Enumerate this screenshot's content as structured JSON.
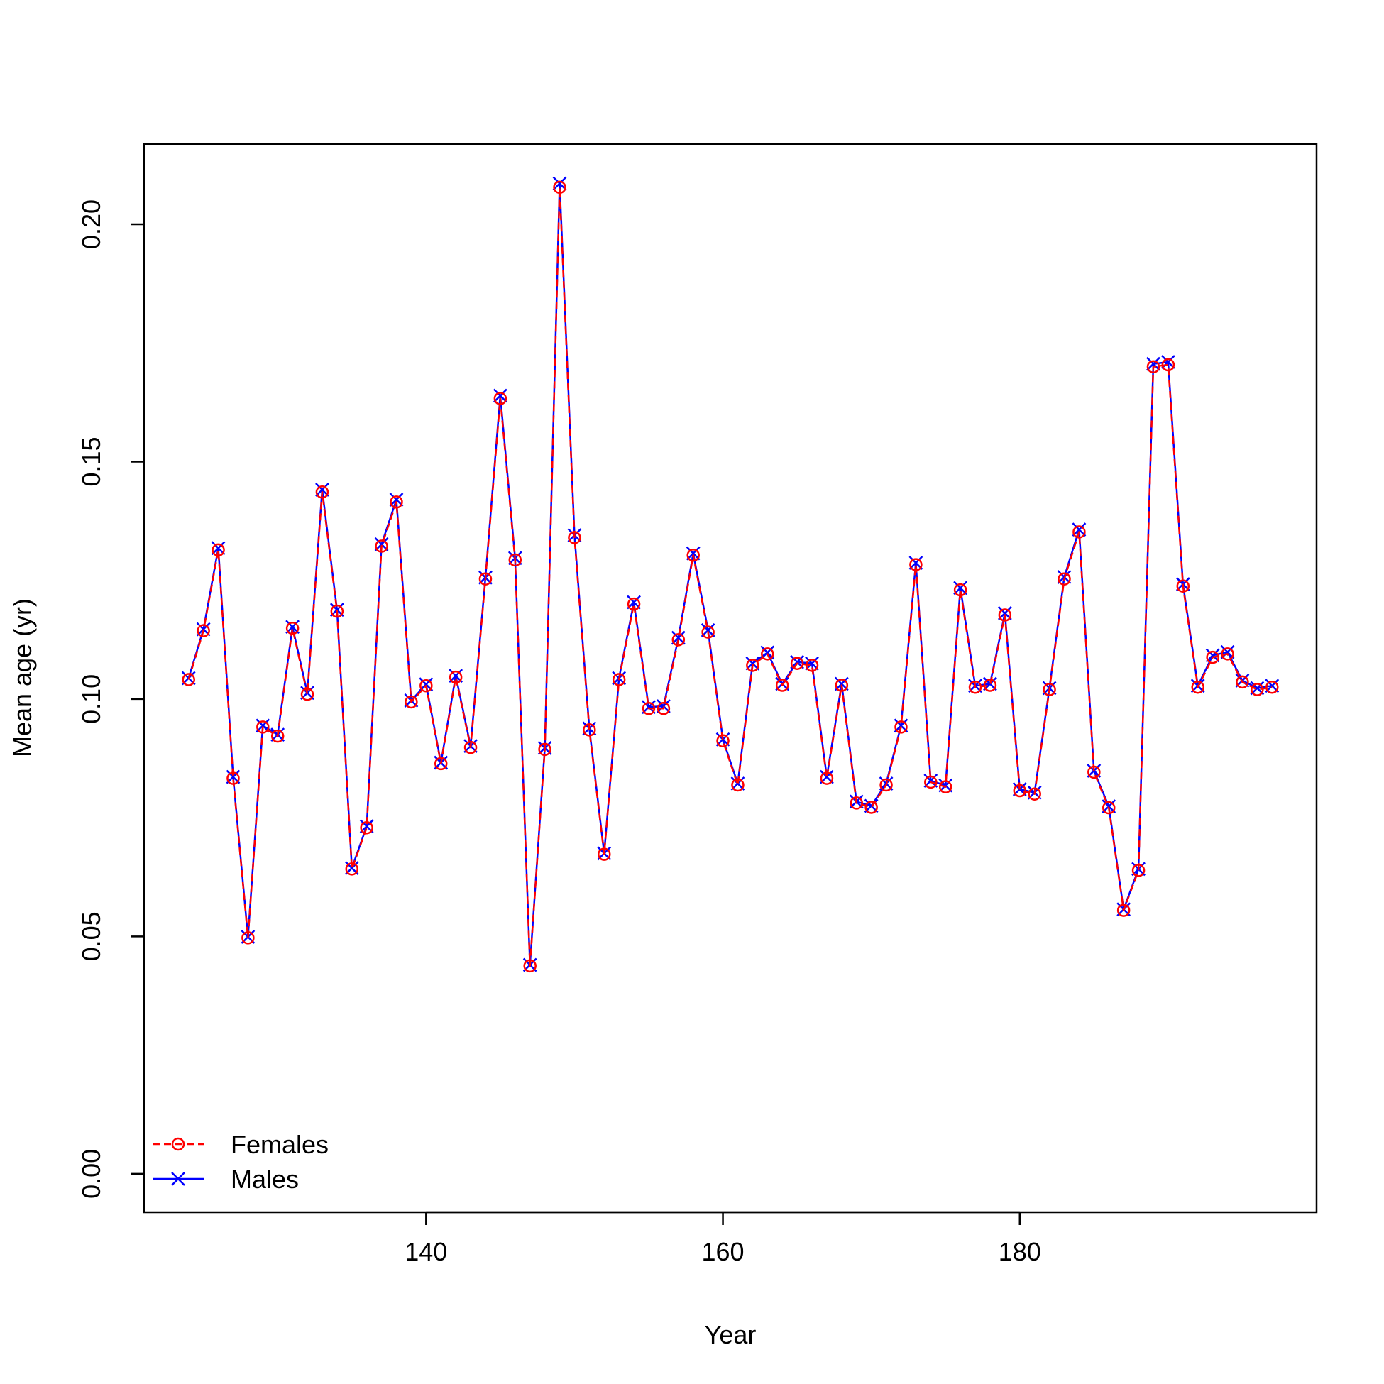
{
  "chart_data": {
    "type": "line",
    "title": "",
    "xlabel": "Year",
    "ylabel": "Mean age (yr)",
    "xlim": [
      121,
      200
    ],
    "ylim": [
      -0.0081,
      0.2169
    ],
    "x_ticks": [
      140,
      160,
      180
    ],
    "x_tick_labels": [
      "140",
      "160",
      "180"
    ],
    "y_ticks": [
      0.0,
      0.05,
      0.1,
      0.15,
      0.2
    ],
    "y_tick_labels": [
      "0.00",
      "0.05",
      "0.10",
      "0.15",
      "0.20"
    ],
    "grid": false,
    "legend": {
      "position": "bottom-left",
      "frame": false
    },
    "x": [
      124,
      125,
      126,
      127,
      128,
      129,
      130,
      131,
      132,
      133,
      134,
      135,
      136,
      137,
      138,
      139,
      140,
      141,
      142,
      143,
      144,
      145,
      146,
      147,
      148,
      149,
      150,
      151,
      152,
      153,
      154,
      155,
      156,
      157,
      158,
      159,
      160,
      161,
      162,
      163,
      164,
      165,
      166,
      167,
      168,
      169,
      170,
      171,
      172,
      173,
      174,
      175,
      176,
      177,
      178,
      179,
      180,
      181,
      182,
      183,
      184,
      185,
      186,
      187,
      188,
      189,
      190,
      191,
      192,
      193,
      194,
      195,
      196,
      197
    ],
    "series": [
      {
        "name": "Females",
        "color": "#ff0000",
        "line_style": "dashed",
        "marker": "circle",
        "values": [
          0.1041,
          0.1144,
          0.1314,
          0.0833,
          0.0497,
          0.0941,
          0.0922,
          0.1149,
          0.101,
          0.1436,
          0.1185,
          0.0642,
          0.0729,
          0.1322,
          0.1415,
          0.0994,
          0.1028,
          0.0864,
          0.1046,
          0.0898,
          0.1253,
          0.1633,
          0.1293,
          0.0438,
          0.0894,
          0.2078,
          0.134,
          0.0935,
          0.0673,
          0.1041,
          0.12,
          0.098,
          0.098,
          0.1125,
          0.1303,
          0.1141,
          0.0912,
          0.0819,
          0.1071,
          0.1095,
          0.1029,
          0.1075,
          0.1071,
          0.0833,
          0.1029,
          0.0781,
          0.0772,
          0.0819,
          0.0941,
          0.1283,
          0.0825,
          0.0815,
          0.123,
          0.1025,
          0.1029,
          0.1177,
          0.0807,
          0.08,
          0.102,
          0.1253,
          0.1352,
          0.0846,
          0.0771,
          0.0555,
          0.0639,
          0.17,
          0.1704,
          0.1238,
          0.1025,
          0.1088,
          0.1095,
          0.1036,
          0.102,
          0.1025
        ]
      },
      {
        "name": "Males",
        "color": "#0000ff",
        "line_style": "solid",
        "marker": "x",
        "values": [
          0.1044,
          0.1147,
          0.1318,
          0.0836,
          0.0499,
          0.0944,
          0.0925,
          0.1152,
          0.1013,
          0.1441,
          0.1188,
          0.0644,
          0.0732,
          0.1326,
          0.142,
          0.0997,
          0.1031,
          0.0866,
          0.1049,
          0.0901,
          0.1256,
          0.1639,
          0.1297,
          0.044,
          0.0897,
          0.2086,
          0.1345,
          0.0938,
          0.0675,
          0.1044,
          0.1204,
          0.0983,
          0.0985,
          0.1129,
          0.1307,
          0.1145,
          0.0915,
          0.0822,
          0.1075,
          0.1098,
          0.1032,
          0.1078,
          0.1075,
          0.0836,
          0.1032,
          0.0784,
          0.0775,
          0.0822,
          0.0944,
          0.1287,
          0.0828,
          0.0818,
          0.1234,
          0.1028,
          0.1032,
          0.1181,
          0.081,
          0.0803,
          0.1023,
          0.1257,
          0.1357,
          0.0849,
          0.0774,
          0.0557,
          0.0642,
          0.1706,
          0.171,
          0.1242,
          0.1028,
          0.1092,
          0.1099,
          0.1039,
          0.1023,
          0.1028
        ]
      }
    ]
  }
}
